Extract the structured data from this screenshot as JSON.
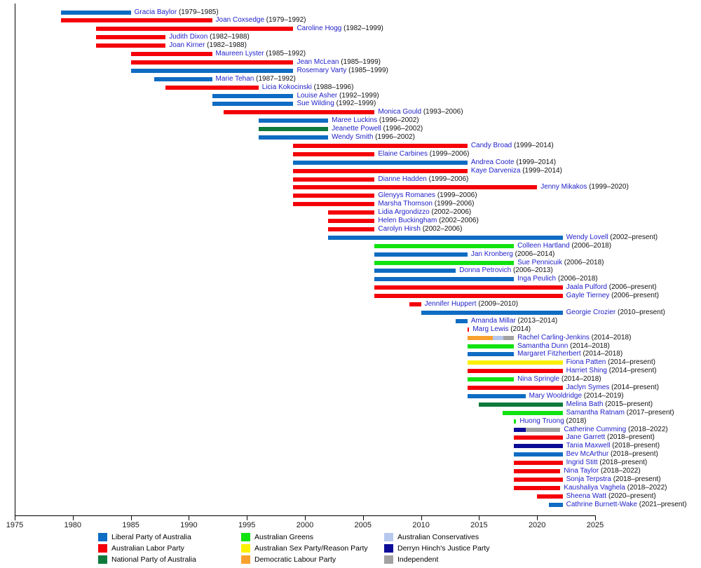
{
  "chart_data": {
    "type": "gantt-timeline",
    "title": "",
    "x_axis": {
      "min": 1975,
      "max": 2025,
      "tick_interval": 5,
      "ticks": [
        1975,
        1980,
        1985,
        1990,
        1995,
        2000,
        2005,
        2010,
        2015,
        2020,
        2025
      ]
    },
    "present_year": 2022.2,
    "grid": false,
    "legend_position": "bottom",
    "text_colors": {
      "member_name": "#2222cc",
      "member_dates": "#111111",
      "axis": "#1a1a1a"
    },
    "parties": [
      {
        "id": "liberal",
        "label": "Liberal Party of Australia",
        "color": "#0f6cc3"
      },
      {
        "id": "labor",
        "label": "Australian Labor Party",
        "color": "#f40008"
      },
      {
        "id": "national",
        "label": "National Party of Australia",
        "color": "#0e7a3c"
      },
      {
        "id": "greens",
        "label": "Australian Greens",
        "color": "#10e310"
      },
      {
        "id": "sex_reason",
        "label": "Australian Sex Party/Reason Party",
        "color": "#fbf000"
      },
      {
        "id": "dlp",
        "label": "Democratic Labour Party",
        "color": "#f9a12f"
      },
      {
        "id": "conservatives",
        "label": "Australian Conservatives",
        "color": "#b7c8ef"
      },
      {
        "id": "dhjp",
        "label": "Derryn Hinch's Justice Party",
        "color": "#0b0b97"
      },
      {
        "id": "independent",
        "label": "Independent",
        "color": "#a2a2a2"
      }
    ],
    "members": [
      {
        "name": "Gracia Baylor",
        "period": "(1979–1985)",
        "segments": [
          {
            "party": "liberal",
            "start": 1979,
            "end": 1985
          }
        ]
      },
      {
        "name": "Joan Coxsedge",
        "period": "(1979–1992)",
        "segments": [
          {
            "party": "labor",
            "start": 1979,
            "end": 1992
          }
        ]
      },
      {
        "name": "Caroline Hogg",
        "period": "(1982–1999)",
        "segments": [
          {
            "party": "labor",
            "start": 1982,
            "end": 1999
          }
        ]
      },
      {
        "name": "Judith Dixon",
        "period": "(1982–1988)",
        "segments": [
          {
            "party": "labor",
            "start": 1982,
            "end": 1988
          }
        ]
      },
      {
        "name": "Joan Kirner",
        "period": "(1982–1988)",
        "segments": [
          {
            "party": "labor",
            "start": 1982,
            "end": 1988
          }
        ]
      },
      {
        "name": "Maureen Lyster",
        "period": "(1985–1992)",
        "segments": [
          {
            "party": "labor",
            "start": 1985,
            "end": 1992
          }
        ]
      },
      {
        "name": "Jean McLean",
        "period": "(1985–1999)",
        "segments": [
          {
            "party": "labor",
            "start": 1985,
            "end": 1999
          }
        ]
      },
      {
        "name": "Rosemary Varty",
        "period": "(1985–1999)",
        "segments": [
          {
            "party": "liberal",
            "start": 1985,
            "end": 1999
          }
        ]
      },
      {
        "name": "Marie Tehan",
        "period": "(1987–1992)",
        "segments": [
          {
            "party": "liberal",
            "start": 1987,
            "end": 1992
          }
        ]
      },
      {
        "name": "Licia Kokocinski",
        "period": "(1988–1996)",
        "segments": [
          {
            "party": "labor",
            "start": 1988,
            "end": 1996
          }
        ]
      },
      {
        "name": "Louise Asher",
        "period": "(1992–1999)",
        "segments": [
          {
            "party": "liberal",
            "start": 1992,
            "end": 1999
          }
        ]
      },
      {
        "name": "Sue Wilding",
        "period": "(1992–1999)",
        "segments": [
          {
            "party": "liberal",
            "start": 1992,
            "end": 1999
          }
        ]
      },
      {
        "name": "Monica Gould",
        "period": "(1993–2006)",
        "segments": [
          {
            "party": "labor",
            "start": 1993,
            "end": 2006
          }
        ]
      },
      {
        "name": "Maree Luckins",
        "period": "(1996–2002)",
        "segments": [
          {
            "party": "liberal",
            "start": 1996,
            "end": 2002
          }
        ]
      },
      {
        "name": "Jeanette Powell",
        "period": "(1996–2002)",
        "segments": [
          {
            "party": "national",
            "start": 1996,
            "end": 2002
          }
        ]
      },
      {
        "name": "Wendy Smith",
        "period": "(1996–2002)",
        "segments": [
          {
            "party": "liberal",
            "start": 1996,
            "end": 2002
          }
        ]
      },
      {
        "name": "Candy Broad",
        "period": "(1999–2014)",
        "segments": [
          {
            "party": "labor",
            "start": 1999,
            "end": 2014
          }
        ]
      },
      {
        "name": "Elaine Carbines",
        "period": "(1999–2006)",
        "segments": [
          {
            "party": "labor",
            "start": 1999,
            "end": 2006
          }
        ]
      },
      {
        "name": "Andrea Coote",
        "period": "(1999–2014)",
        "segments": [
          {
            "party": "liberal",
            "start": 1999,
            "end": 2014
          }
        ]
      },
      {
        "name": "Kaye Darveniza",
        "period": "(1999–2014)",
        "segments": [
          {
            "party": "labor",
            "start": 1999,
            "end": 2014
          }
        ]
      },
      {
        "name": "Dianne Hadden",
        "period": "(1999–2006)",
        "segments": [
          {
            "party": "labor",
            "start": 1999,
            "end": 2006
          }
        ]
      },
      {
        "name": "Jenny Mikakos",
        "period": "(1999–2020)",
        "segments": [
          {
            "party": "labor",
            "start": 1999,
            "end": 2020
          }
        ]
      },
      {
        "name": "Glenyys Romanes",
        "period": "(1999–2006)",
        "segments": [
          {
            "party": "labor",
            "start": 1999,
            "end": 2006
          }
        ]
      },
      {
        "name": "Marsha Thomson",
        "period": "(1999–2006)",
        "segments": [
          {
            "party": "labor",
            "start": 1999,
            "end": 2006
          }
        ]
      },
      {
        "name": "Lidia Argondizzo",
        "period": "(2002–2006)",
        "segments": [
          {
            "party": "labor",
            "start": 2002,
            "end": 2006
          }
        ]
      },
      {
        "name": "Helen Buckingham",
        "period": "(2002–2006)",
        "segments": [
          {
            "party": "labor",
            "start": 2002,
            "end": 2006
          }
        ]
      },
      {
        "name": "Carolyn Hirsh",
        "period": "(2002–2006)",
        "segments": [
          {
            "party": "labor",
            "start": 2002,
            "end": 2006
          }
        ]
      },
      {
        "name": "Wendy Lovell",
        "period": "(2002–present)",
        "segments": [
          {
            "party": "liberal",
            "start": 2002,
            "end": "present"
          }
        ]
      },
      {
        "name": "Colleen Hartland",
        "period": "(2006–2018)",
        "segments": [
          {
            "party": "greens",
            "start": 2006,
            "end": 2018
          }
        ]
      },
      {
        "name": "Jan Kronberg",
        "period": "(2006–2014)",
        "segments": [
          {
            "party": "liberal",
            "start": 2006,
            "end": 2014
          }
        ]
      },
      {
        "name": "Sue Pennicuik",
        "period": "(2006–2018)",
        "segments": [
          {
            "party": "greens",
            "start": 2006,
            "end": 2018
          }
        ]
      },
      {
        "name": "Donna Petrovich",
        "period": "(2006–2013)",
        "segments": [
          {
            "party": "liberal",
            "start": 2006,
            "end": 2013
          }
        ]
      },
      {
        "name": "Inga Peulich",
        "period": "(2006–2018)",
        "segments": [
          {
            "party": "liberal",
            "start": 2006,
            "end": 2018
          }
        ]
      },
      {
        "name": "Jaala Pulford",
        "period": "(2006–present)",
        "segments": [
          {
            "party": "labor",
            "start": 2006,
            "end": "present"
          }
        ]
      },
      {
        "name": "Gayle Tierney",
        "period": "(2006–present)",
        "segments": [
          {
            "party": "labor",
            "start": 2006,
            "end": "present"
          }
        ]
      },
      {
        "name": "Jennifer Huppert",
        "period": "(2009–2010)",
        "segments": [
          {
            "party": "labor",
            "start": 2009,
            "end": 2010
          }
        ]
      },
      {
        "name": "Georgie Crozier",
        "period": "(2010–present)",
        "segments": [
          {
            "party": "liberal",
            "start": 2010,
            "end": "present"
          }
        ]
      },
      {
        "name": "Amanda Millar",
        "period": "(2013–2014)",
        "segments": [
          {
            "party": "liberal",
            "start": 2013,
            "end": 2014
          }
        ]
      },
      {
        "name": "Marg Lewis",
        "period": "(2014)",
        "segments": [
          {
            "party": "labor",
            "start": 2014,
            "end": 2014.15
          }
        ]
      },
      {
        "name": "Rachel Carling-Jenkins",
        "period": "(2014–2018)",
        "segments": [
          {
            "party": "dlp",
            "start": 2014,
            "end": 2016.2
          },
          {
            "party": "conservatives",
            "start": 2016.2,
            "end": 2017.1
          },
          {
            "party": "independent",
            "start": 2017.1,
            "end": 2018
          }
        ]
      },
      {
        "name": "Samantha Dunn",
        "period": "(2014–2018)",
        "segments": [
          {
            "party": "greens",
            "start": 2014,
            "end": 2018
          }
        ]
      },
      {
        "name": "Margaret Fitzherbert",
        "period": "(2014–2018)",
        "segments": [
          {
            "party": "liberal",
            "start": 2014,
            "end": 2018
          }
        ]
      },
      {
        "name": "Fiona Patten",
        "period": "(2014–present)",
        "segments": [
          {
            "party": "sex_reason",
            "start": 2014,
            "end": "present"
          }
        ]
      },
      {
        "name": "Harriet Shing",
        "period": "(2014–present)",
        "segments": [
          {
            "party": "labor",
            "start": 2014,
            "end": "present"
          }
        ]
      },
      {
        "name": "Nina Springle",
        "period": "(2014–2018)",
        "segments": [
          {
            "party": "greens",
            "start": 2014,
            "end": 2018
          }
        ]
      },
      {
        "name": "Jaclyn Symes",
        "period": "(2014–present)",
        "segments": [
          {
            "party": "labor",
            "start": 2014,
            "end": "present"
          }
        ]
      },
      {
        "name": "Mary Wooldridge",
        "period": "(2014–2019)",
        "segments": [
          {
            "party": "liberal",
            "start": 2014,
            "end": 2019
          }
        ]
      },
      {
        "name": "Melina Bath",
        "period": "(2015–present)",
        "segments": [
          {
            "party": "national",
            "start": 2015,
            "end": "present"
          }
        ]
      },
      {
        "name": "Samantha Ratnam",
        "period": "(2017–present)",
        "segments": [
          {
            "party": "greens",
            "start": 2017,
            "end": "present"
          }
        ]
      },
      {
        "name": "Huong Truong",
        "period": "(2018)",
        "segments": [
          {
            "party": "greens",
            "start": 2018,
            "end": 2018.2
          }
        ]
      },
      {
        "name": "Catherine Cumming",
        "period": "(2018–2022)",
        "segments": [
          {
            "party": "dhjp",
            "start": 2018,
            "end": 2019
          },
          {
            "party": "independent",
            "start": 2019,
            "end": 2022
          }
        ]
      },
      {
        "name": "Jane Garrett",
        "period": "(2018–present)",
        "segments": [
          {
            "party": "labor",
            "start": 2018,
            "end": "present"
          }
        ]
      },
      {
        "name": "Tania Maxwell",
        "period": "(2018–present)",
        "segments": [
          {
            "party": "dhjp",
            "start": 2018,
            "end": "present"
          }
        ]
      },
      {
        "name": "Bev McArthur",
        "period": "(2018–present)",
        "segments": [
          {
            "party": "liberal",
            "start": 2018,
            "end": "present"
          }
        ]
      },
      {
        "name": "Ingrid Stitt",
        "period": "(2018–present)",
        "segments": [
          {
            "party": "labor",
            "start": 2018,
            "end": "present"
          }
        ]
      },
      {
        "name": "Nina Taylor",
        "period": "(2018–2022)",
        "segments": [
          {
            "party": "labor",
            "start": 2018,
            "end": 2022
          }
        ]
      },
      {
        "name": "Sonja Terpstra",
        "period": "(2018–present)",
        "segments": [
          {
            "party": "labor",
            "start": 2018,
            "end": "present"
          }
        ]
      },
      {
        "name": "Kaushaliya Vaghela",
        "period": "(2018–2022)",
        "segments": [
          {
            "party": "labor",
            "start": 2018,
            "end": 2022
          }
        ]
      },
      {
        "name": "Sheena Watt",
        "period": "(2020–present)",
        "segments": [
          {
            "party": "labor",
            "start": 2020,
            "end": "present"
          }
        ]
      },
      {
        "name": "Cathrine Burnett-Wake",
        "period": "(2021–present)",
        "segments": [
          {
            "party": "liberal",
            "start": 2021,
            "end": "present"
          }
        ]
      }
    ]
  }
}
